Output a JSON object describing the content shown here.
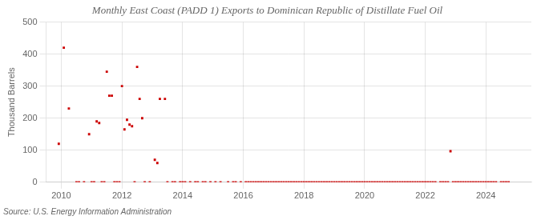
{
  "chart_data": {
    "type": "scatter",
    "title": "Monthly East Coast (PADD 1) Exports to Dominican Republic of Distillate Fuel Oil",
    "ylabel": "Thousand Barrels",
    "annotations": [
      "Source: U.S. Energy Information Administration"
    ],
    "color": "#cc0000",
    "marker": "square",
    "grid": true,
    "xlim": [
      2009.5,
      2025.5
    ],
    "xticks": [
      2010,
      2012,
      2014,
      2016,
      2018,
      2020,
      2022,
      2024
    ],
    "ylim": [
      0,
      500
    ],
    "yticks": [
      0,
      100,
      200,
      300,
      400,
      500
    ],
    "x": [
      2009.917,
      2010.083,
      2010.25,
      2010.5,
      2010.583,
      2010.75,
      2010.917,
      2011.0,
      2011.083,
      2011.167,
      2011.25,
      2011.333,
      2011.417,
      2011.5,
      2011.583,
      2011.667,
      2011.75,
      2011.833,
      2011.917,
      2012.0,
      2012.083,
      2012.167,
      2012.25,
      2012.333,
      2012.417,
      2012.5,
      2012.583,
      2012.667,
      2012.75,
      2012.917,
      2013.083,
      2013.167,
      2013.25,
      2013.417,
      2013.5,
      2013.667,
      2013.75,
      2013.917,
      2014.0,
      2014.083,
      2014.25,
      2014.417,
      2014.5,
      2014.667,
      2014.75,
      2014.917,
      2015.083,
      2015.25,
      2015.5,
      2015.667,
      2015.75,
      2015.917,
      2016.083,
      2016.167,
      2016.25,
      2016.333,
      2016.417,
      2016.5,
      2016.583,
      2016.667,
      2016.75,
      2016.833,
      2016.917,
      2017.0,
      2017.083,
      2017.167,
      2017.25,
      2017.333,
      2017.417,
      2017.5,
      2017.583,
      2017.667,
      2017.75,
      2017.833,
      2017.917,
      2018.0,
      2018.083,
      2018.167,
      2018.25,
      2018.333,
      2018.417,
      2018.5,
      2018.583,
      2018.667,
      2018.75,
      2018.833,
      2018.917,
      2019.0,
      2019.083,
      2019.167,
      2019.25,
      2019.333,
      2019.417,
      2019.5,
      2019.583,
      2019.667,
      2019.75,
      2019.833,
      2019.917,
      2020.0,
      2020.083,
      2020.167,
      2020.25,
      2020.333,
      2020.417,
      2020.5,
      2020.583,
      2020.667,
      2020.75,
      2020.833,
      2020.917,
      2021.0,
      2021.083,
      2021.167,
      2021.25,
      2021.333,
      2021.417,
      2021.5,
      2021.583,
      2021.667,
      2021.75,
      2021.833,
      2021.917,
      2022.0,
      2022.083,
      2022.167,
      2022.25,
      2022.333,
      2022.5,
      2022.583,
      2022.667,
      2022.75,
      2022.833,
      2022.917,
      2023.0,
      2023.083,
      2023.167,
      2023.25,
      2023.333,
      2023.417,
      2023.5,
      2023.583,
      2023.667,
      2023.75,
      2023.833,
      2023.917,
      2024.0,
      2024.083,
      2024.167,
      2024.25,
      2024.333,
      2024.5,
      2024.583,
      2024.667,
      2024.75
    ],
    "values": [
      120,
      420,
      230,
      0,
      0,
      0,
      150,
      0,
      0,
      190,
      185,
      0,
      0,
      345,
      270,
      270,
      0,
      0,
      0,
      300,
      165,
      195,
      180,
      175,
      0,
      360,
      260,
      200,
      0,
      0,
      70,
      60,
      260,
      260,
      0,
      0,
      0,
      0,
      0,
      0,
      0,
      0,
      0,
      0,
      0,
      0,
      0,
      0,
      0,
      0,
      0,
      0,
      0,
      0,
      0,
      0,
      0,
      0,
      0,
      0,
      0,
      0,
      0,
      0,
      0,
      0,
      0,
      0,
      0,
      0,
      0,
      0,
      0,
      0,
      0,
      0,
      0,
      0,
      0,
      0,
      0,
      0,
      0,
      0,
      0,
      0,
      0,
      0,
      0,
      0,
      0,
      0,
      0,
      0,
      0,
      0,
      0,
      0,
      0,
      0,
      0,
      0,
      0,
      0,
      0,
      0,
      0,
      0,
      0,
      0,
      0,
      0,
      0,
      0,
      0,
      0,
      0,
      0,
      0,
      0,
      0,
      0,
      0,
      0,
      0,
      0,
      0,
      0,
      0,
      0,
      0,
      0,
      97,
      0,
      0,
      0,
      0,
      0,
      0,
      0,
      0,
      0,
      0,
      0,
      0,
      0,
      0,
      0,
      0,
      0,
      0,
      0,
      0,
      0,
      0
    ]
  }
}
